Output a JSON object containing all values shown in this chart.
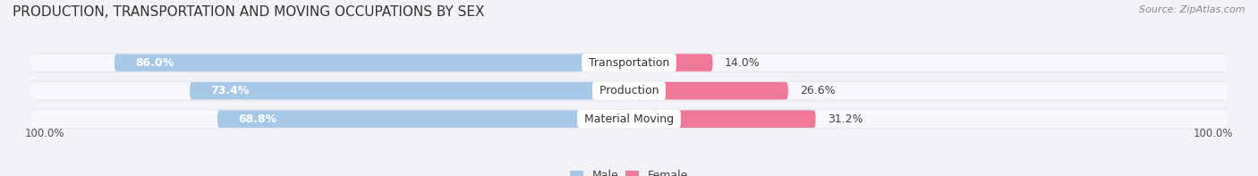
{
  "title": "PRODUCTION, TRANSPORTATION AND MOVING OCCUPATIONS BY SEX",
  "source_text": "Source: ZipAtlas.com",
  "categories": [
    "Transportation",
    "Production",
    "Material Moving"
  ],
  "male_values": [
    86.0,
    73.4,
    68.8
  ],
  "female_values": [
    14.0,
    26.6,
    31.2
  ],
  "male_color": "#a8c8e8",
  "female_color": "#f07898",
  "male_label": "Male",
  "female_label": "Female",
  "bg_color": "#f2f2f7",
  "bar_bg_color": "#e8e8f0",
  "bar_track_color": "#f8f8fc",
  "title_fontsize": 11,
  "label_fontsize": 9,
  "tick_fontsize": 8.5,
  "source_fontsize": 8
}
